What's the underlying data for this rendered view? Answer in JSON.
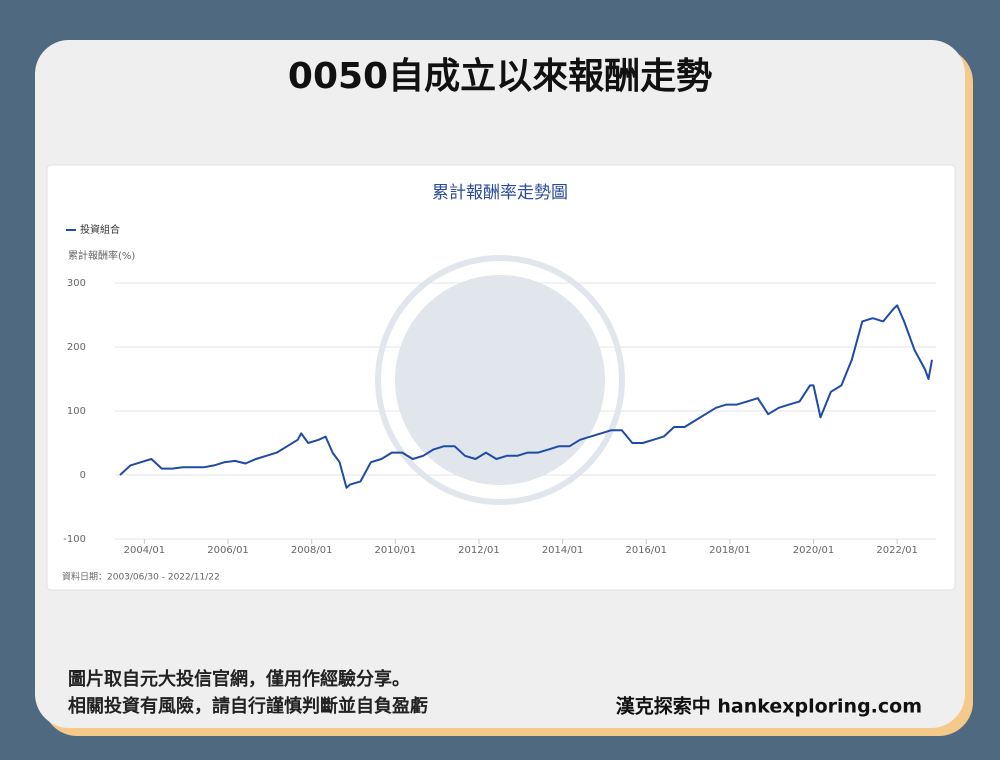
{
  "header": {
    "title": "0050自成立以來報酬走勢"
  },
  "chart_data": {
    "type": "line",
    "title": "累計報酬率走勢圖",
    "y_label": "累計報酬率(%)",
    "date_note": "資料日期：2003/06/30 - 2022/11/22",
    "x": [
      "2003/06",
      "2003/09",
      "2003/12",
      "2004/03",
      "2004/06",
      "2004/09",
      "2004/12",
      "2005/03",
      "2005/06",
      "2005/09",
      "2005/12",
      "2006/03",
      "2006/06",
      "2006/09",
      "2006/12",
      "2007/03",
      "2007/06",
      "2007/09",
      "2007/10",
      "2007/12",
      "2008/03",
      "2008/05",
      "2008/07",
      "2008/09",
      "2008/11",
      "2008/12",
      "2009/03",
      "2009/06",
      "2009/09",
      "2009/12",
      "2010/03",
      "2010/06",
      "2010/09",
      "2010/12",
      "2011/03",
      "2011/06",
      "2011/09",
      "2011/12",
      "2012/03",
      "2012/06",
      "2012/09",
      "2012/12",
      "2013/03",
      "2013/06",
      "2013/09",
      "2013/12",
      "2014/03",
      "2014/06",
      "2014/09",
      "2014/12",
      "2015/03",
      "2015/06",
      "2015/09",
      "2015/12",
      "2016/03",
      "2016/06",
      "2016/09",
      "2016/12",
      "2017/03",
      "2017/06",
      "2017/09",
      "2017/12",
      "2018/03",
      "2018/06",
      "2018/09",
      "2018/12",
      "2019/03",
      "2019/06",
      "2019/09",
      "2019/12",
      "2020/01",
      "2020/03",
      "2020/06",
      "2020/09",
      "2020/12",
      "2021/03",
      "2021/06",
      "2021/09",
      "2021/12",
      "2022/01",
      "2022/03",
      "2022/06",
      "2022/09",
      "2022/10",
      "2022/11"
    ],
    "series": [
      {
        "name": "投資組合",
        "color": "#1f4aa8",
        "values": [
          0,
          15,
          20,
          25,
          10,
          10,
          12,
          12,
          12,
          15,
          20,
          22,
          18,
          25,
          30,
          35,
          45,
          55,
          65,
          50,
          55,
          60,
          35,
          20,
          -20,
          -15,
          -10,
          20,
          25,
          35,
          35,
          25,
          30,
          40,
          45,
          45,
          30,
          25,
          35,
          25,
          30,
          30,
          35,
          35,
          40,
          45,
          45,
          55,
          60,
          65,
          70,
          70,
          50,
          50,
          55,
          60,
          75,
          75,
          85,
          95,
          105,
          110,
          110,
          115,
          120,
          95,
          105,
          110,
          115,
          140,
          140,
          90,
          130,
          140,
          180,
          240,
          245,
          240,
          260,
          265,
          240,
          195,
          165,
          150,
          180
        ]
      }
    ],
    "xlim": [
      "2003/06",
      "2022/11"
    ],
    "xticks": [
      "2004/01",
      "2006/01",
      "2008/01",
      "2010/01",
      "2012/01",
      "2014/01",
      "2016/01",
      "2018/01",
      "2020/01",
      "2022/01"
    ],
    "ylim": [
      -100,
      300
    ],
    "yticks": [
      -100,
      0,
      100,
      200,
      300
    ],
    "grid": true
  },
  "footer": {
    "note_lines": [
      "圖片取自元大投信官網，僅用作經驗分享。",
      "相關投資有風險，請自行謹慎判斷並自負盈虧"
    ],
    "brand": "漢克探索中 hankexploring.com"
  }
}
